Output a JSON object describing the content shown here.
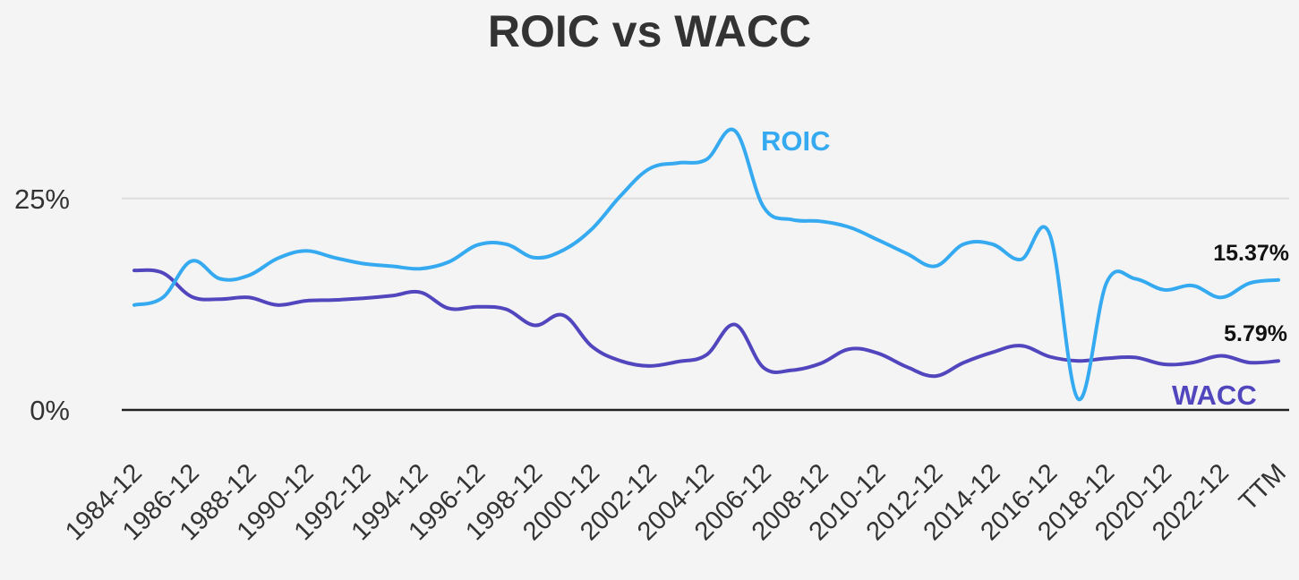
{
  "chart_data": {
    "type": "line",
    "title": "ROIC vs WACC",
    "xlabel": "",
    "ylabel": "",
    "ylim": [
      0,
      33.5
    ],
    "y_ticks": [
      {
        "value": 0,
        "label": "0%"
      },
      {
        "value": 25,
        "label": "25%"
      }
    ],
    "x_ticks": [
      "1984-12",
      "1986-12",
      "1988-12",
      "1990-12",
      "1992-12",
      "1994-12",
      "1996-12",
      "1998-12",
      "2000-12",
      "2002-12",
      "2004-12",
      "2006-12",
      "2008-12",
      "2010-12",
      "2012-12",
      "2014-12",
      "2016-12",
      "2018-12",
      "2020-12",
      "2022-12",
      "TTM"
    ],
    "x": [
      "1984-12",
      "1985-12",
      "1986-12",
      "1987-12",
      "1988-12",
      "1989-12",
      "1990-12",
      "1991-12",
      "1992-12",
      "1993-12",
      "1994-12",
      "1995-12",
      "1996-12",
      "1997-12",
      "1998-12",
      "1999-12",
      "2000-12",
      "2001-12",
      "2002-12",
      "2003-12",
      "2004-12",
      "2005-12",
      "2006-12",
      "2007-12",
      "2008-12",
      "2009-12",
      "2010-12",
      "2011-12",
      "2012-12",
      "2013-12",
      "2014-12",
      "2015-12",
      "2016-12",
      "2017-12",
      "2018-12",
      "2019-12",
      "2020-12",
      "2021-12",
      "2022-12",
      "2023-12",
      "TTM"
    ],
    "series": [
      {
        "name": "ROIC",
        "color": "#35aaf1",
        "values": [
          12.4,
          13.3,
          17.6,
          15.5,
          15.9,
          17.9,
          18.8,
          18.0,
          17.3,
          17.0,
          16.7,
          17.5,
          19.5,
          19.6,
          18.0,
          18.9,
          21.4,
          25.3,
          28.5,
          29.2,
          29.6,
          33.0,
          24.0,
          22.5,
          22.3,
          21.6,
          20.1,
          18.5,
          17.0,
          19.6,
          19.6,
          17.8,
          20.8,
          1.3,
          15.1,
          15.5,
          14.2,
          14.7,
          13.3,
          15.0,
          15.37
        ]
      },
      {
        "name": "WACC",
        "color": "#5146bd",
        "values": [
          16.5,
          16.2,
          13.4,
          13.1,
          13.3,
          12.4,
          12.9,
          13.0,
          13.2,
          13.5,
          13.9,
          12.0,
          12.2,
          11.9,
          10.0,
          11.2,
          7.5,
          5.8,
          5.2,
          5.7,
          6.5,
          10.1,
          5.0,
          4.7,
          5.5,
          7.2,
          6.7,
          5.1,
          4.0,
          5.6,
          6.8,
          7.6,
          6.3,
          5.8,
          6.1,
          6.2,
          5.4,
          5.6,
          6.4,
          5.6,
          5.79
        ]
      }
    ],
    "end_labels": [
      "15.37%",
      "5.79%"
    ],
    "grid": true,
    "legend": "inline labels"
  }
}
